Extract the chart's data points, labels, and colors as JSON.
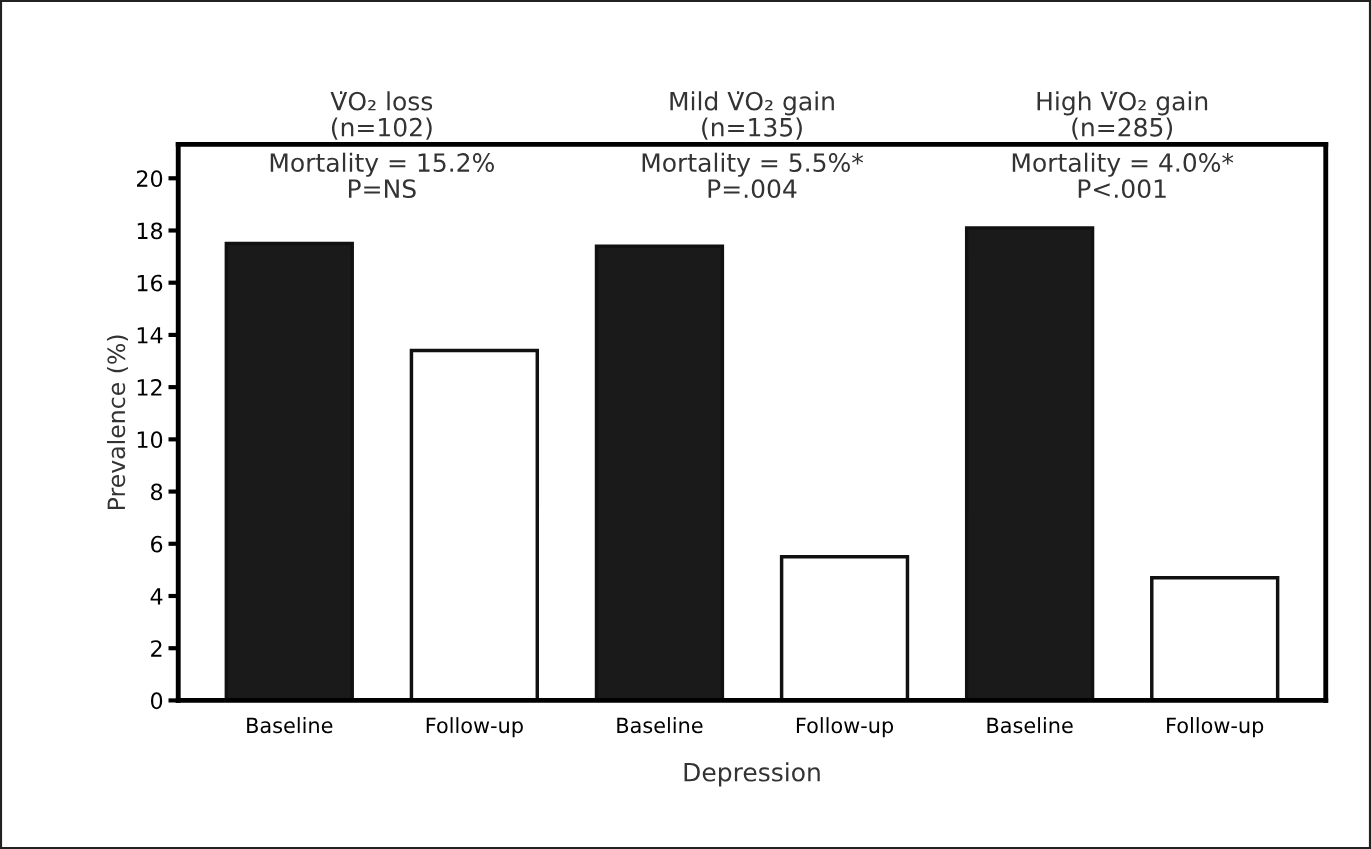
{
  "chart_data": {
    "type": "bar",
    "categories": [
      "Baseline",
      "Follow-up",
      "Baseline",
      "Follow-up",
      "Baseline",
      "Follow-up"
    ],
    "values": [
      17.5,
      13.4,
      17.4,
      5.5,
      18.1,
      4.7
    ],
    "colors": [
      "#1a1a1a",
      "#ffffff",
      "#1a1a1a",
      "#ffffff",
      "#1a1a1a",
      "#ffffff"
    ],
    "ylabel": "Prevalence (%)",
    "xlabel": "Depression",
    "ylim": [
      0,
      21.3
    ],
    "yticks": [
      0,
      2,
      4,
      6,
      8,
      10,
      12,
      14,
      16,
      18,
      20
    ],
    "annotations": [
      "V̇O₂ loss\n(n=102)",
      "Mild V̇O₂ gain\n(n=135)",
      "High V̇O₂ gain\n(n=285)",
      "Mortality = 15.2%\nP=NS",
      "Mortality = 5.5%*\nP=.004",
      "Mortality = 4.0%*\nP<.001"
    ],
    "grid": false
  }
}
